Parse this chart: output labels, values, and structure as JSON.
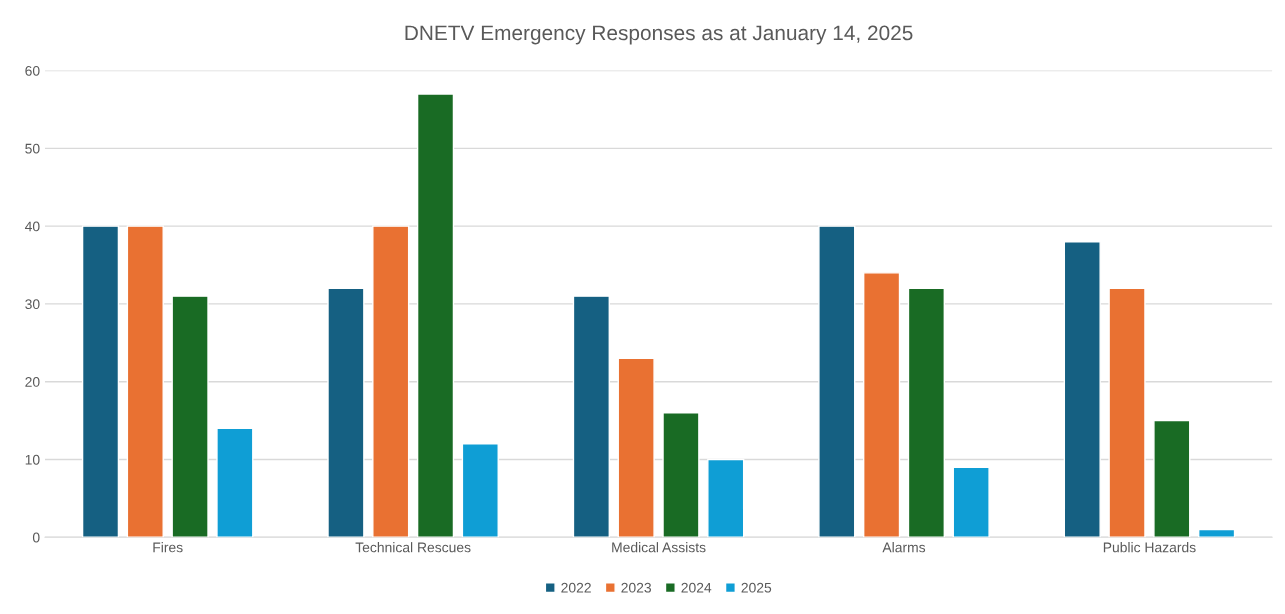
{
  "chart_data": {
    "type": "bar",
    "title": "DNETV Emergency Responses as at January 14, 2025",
    "categories": [
      "Fires",
      "Technical Rescues",
      "Medical Assists",
      "Alarms",
      "Public Hazards"
    ],
    "series": [
      {
        "name": "2022",
        "color": "#156082",
        "values": [
          40,
          32,
          31,
          40,
          38
        ]
      },
      {
        "name": "2023",
        "color": "#e97132",
        "values": [
          40,
          40,
          23,
          34,
          32
        ]
      },
      {
        "name": "2024",
        "color": "#196b24",
        "values": [
          31,
          57,
          16,
          32,
          15
        ]
      },
      {
        "name": "2025",
        "color": "#0f9ed5",
        "values": [
          14,
          12,
          10,
          9,
          1
        ]
      }
    ],
    "ylim": [
      0,
      60
    ],
    "yticks": [
      0,
      10,
      20,
      30,
      40,
      50,
      60
    ],
    "grid": "y",
    "legend": "bottom"
  }
}
